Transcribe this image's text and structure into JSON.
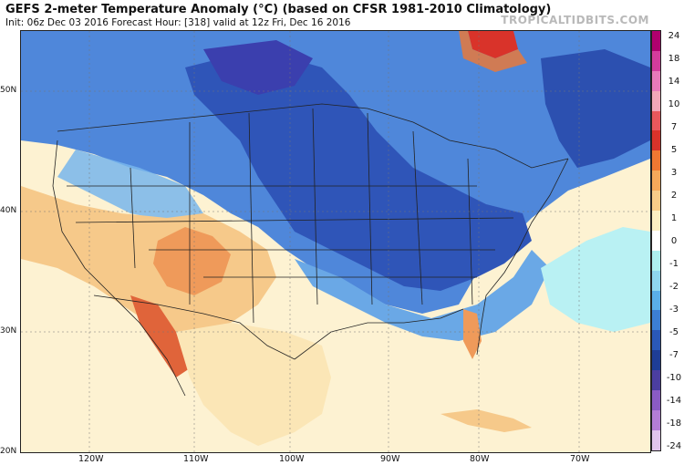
{
  "header": {
    "title": "GEFS 2-meter Temperature Anomaly (°C) (based on CFSR 1981-2010 Climatology)",
    "subtitle": "Init: 06z Dec 03 2016   Forecast Hour: [318]   valid at 12z Fri, Dec 16 2016",
    "brand": "TROPICALTIDBITS.COM"
  },
  "axes": {
    "lat_labels": [
      "50N",
      "40N",
      "30N",
      "20N"
    ],
    "lon_labels": [
      "120W",
      "110W",
      "100W",
      "90W",
      "80W",
      "70W"
    ]
  },
  "colorbar": {
    "labels": [
      "24",
      "18",
      "14",
      "10",
      "7",
      "5",
      "3",
      "2",
      "1",
      "0",
      "-1",
      "-2",
      "-3",
      "-5",
      "-7",
      "-10",
      "-14",
      "-18",
      "-24"
    ],
    "colors": [
      "#b0006e",
      "#d43c9c",
      "#e87ab9",
      "#f2a7b8",
      "#e8585c",
      "#d9332a",
      "#f07832",
      "#f5a85a",
      "#f8cc88",
      "#fbeec2",
      "#ffffff",
      "#aef0ef",
      "#8fd6ee",
      "#5aaee8",
      "#3c7ed4",
      "#2a58b8",
      "#1e3d96",
      "#4b3ea0",
      "#8a5bc4",
      "#b37dd6",
      "#e0c4ec"
    ]
  },
  "map": {
    "colors": {
      "deep_blue": "#2f55b8",
      "blue": "#3f7ad6",
      "light_blue": "#6aa8e6",
      "pale_blue": "#a6d8f0",
      "cyan": "#b9f1f3",
      "tan": "#fbe6b6",
      "light_orange": "#f6c98a",
      "orange": "#ef9a5a",
      "red_orange": "#e0643a",
      "purple": "#3b3fae"
    }
  }
}
